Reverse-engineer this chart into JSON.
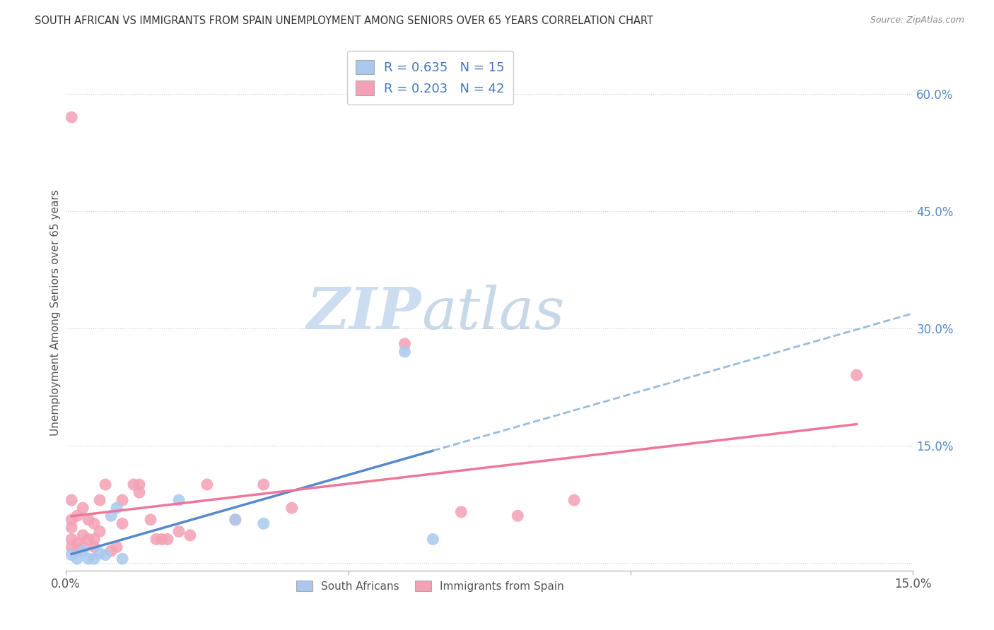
{
  "title": "SOUTH AFRICAN VS IMMIGRANTS FROM SPAIN UNEMPLOYMENT AMONG SENIORS OVER 65 YEARS CORRELATION CHART",
  "source": "Source: ZipAtlas.com",
  "ylabel": "Unemployment Among Seniors over 65 years",
  "xlim": [
    0.0,
    0.15
  ],
  "ylim": [
    -0.01,
    0.65
  ],
  "blue_R": 0.635,
  "blue_N": 15,
  "pink_R": 0.203,
  "pink_N": 42,
  "blue_color": "#aac8ee",
  "pink_color": "#f4a0b5",
  "blue_line_color": "#5588cc",
  "pink_line_color": "#ee7799",
  "blue_dashed_color": "#99bbdd",
  "blue_scatter_x": [
    0.001,
    0.002,
    0.003,
    0.004,
    0.005,
    0.006,
    0.007,
    0.008,
    0.009,
    0.01,
    0.02,
    0.03,
    0.035,
    0.06,
    0.065
  ],
  "blue_scatter_y": [
    0.01,
    0.005,
    0.015,
    0.005,
    0.005,
    0.012,
    0.01,
    0.06,
    0.07,
    0.005,
    0.08,
    0.055,
    0.05,
    0.27,
    0.03
  ],
  "pink_scatter_x": [
    0.001,
    0.001,
    0.001,
    0.001,
    0.001,
    0.001,
    0.002,
    0.002,
    0.002,
    0.003,
    0.003,
    0.003,
    0.004,
    0.004,
    0.005,
    0.005,
    0.005,
    0.006,
    0.006,
    0.007,
    0.008,
    0.009,
    0.01,
    0.01,
    0.012,
    0.013,
    0.013,
    0.015,
    0.016,
    0.017,
    0.018,
    0.02,
    0.022,
    0.025,
    0.03,
    0.035,
    0.04,
    0.06,
    0.07,
    0.08,
    0.09,
    0.14
  ],
  "pink_scatter_y": [
    0.57,
    0.02,
    0.03,
    0.045,
    0.055,
    0.08,
    0.015,
    0.025,
    0.06,
    0.02,
    0.035,
    0.07,
    0.03,
    0.055,
    0.02,
    0.03,
    0.05,
    0.04,
    0.08,
    0.1,
    0.015,
    0.02,
    0.05,
    0.08,
    0.1,
    0.09,
    0.1,
    0.055,
    0.03,
    0.03,
    0.03,
    0.04,
    0.035,
    0.1,
    0.055,
    0.1,
    0.07,
    0.28,
    0.065,
    0.06,
    0.08,
    0.24
  ],
  "grid_yticks": [
    0.0,
    0.15,
    0.3,
    0.45,
    0.6
  ],
  "right_yticklabels": [
    "",
    "15.0%",
    "30.0%",
    "45.0%",
    "60.0%"
  ],
  "xtick_positions": [
    0.0,
    0.05,
    0.1,
    0.15
  ],
  "xticklabels": [
    "0.0%",
    "",
    "",
    "15.0%"
  ]
}
